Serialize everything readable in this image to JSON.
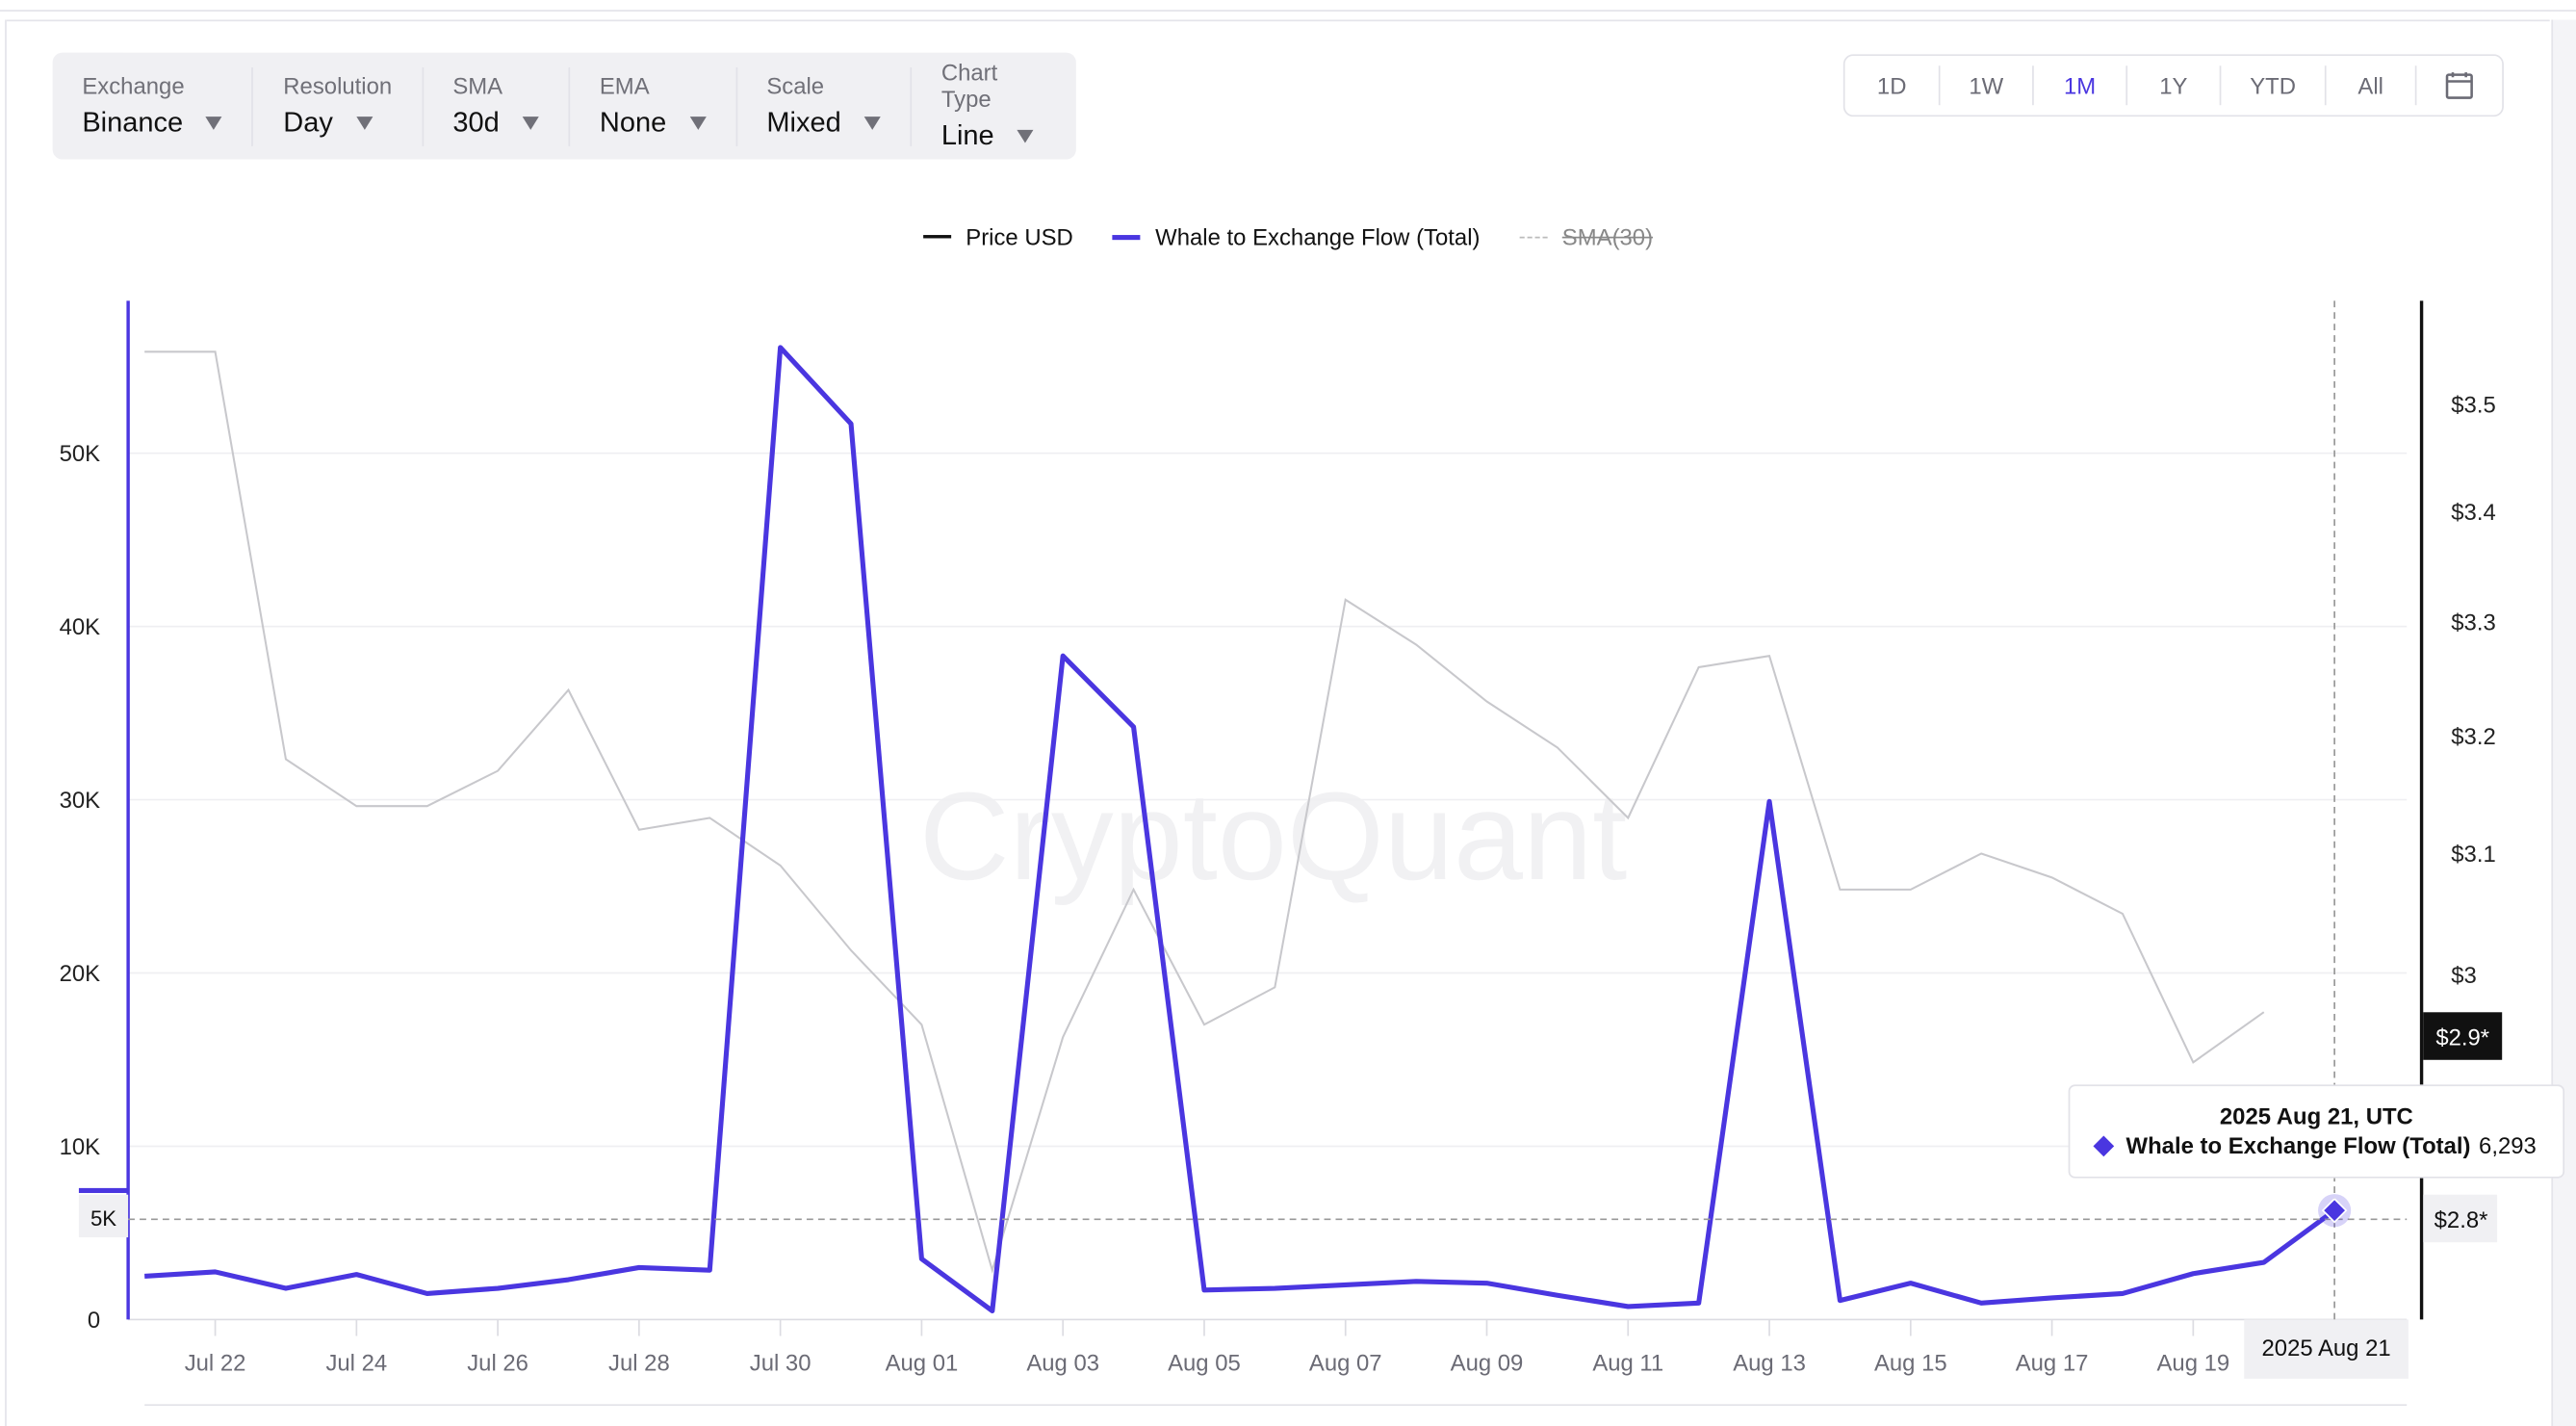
{
  "toolbar": [
    {
      "label": "Exchange",
      "value": "Binance"
    },
    {
      "label": "Resolution",
      "value": "Day"
    },
    {
      "label": "SMA",
      "value": "30d"
    },
    {
      "label": "EMA",
      "value": "None"
    },
    {
      "label": "Scale",
      "value": "Mixed"
    },
    {
      "label": "Chart Type",
      "value": "Line"
    }
  ],
  "ranges": [
    "1D",
    "1W",
    "1M",
    "1Y",
    "YTD",
    "All"
  ],
  "active_range": "1M",
  "tooltip": {
    "title": "2025 Aug 21, UTC",
    "series": "Whale to Exchange Flow (Total)",
    "value": "6,293"
  },
  "watermark": "CryptoQuant",
  "colors": {
    "flow": "#4a36e0",
    "price": "#c8c8cc",
    "grid": "#efeff2"
  },
  "chart_data": {
    "type": "line",
    "title": "",
    "legend": [
      "Price USD",
      "Whale to Exchange Flow (Total)",
      "SMA(30)"
    ],
    "legend_placement": "top-center",
    "x": [
      "Jul 21",
      "Jul 22",
      "Jul 23",
      "Jul 24",
      "Jul 25",
      "Jul 26",
      "Jul 27",
      "Jul 28",
      "Jul 29",
      "Jul 30",
      "Jul 31",
      "Aug 01",
      "Aug 02",
      "Aug 03",
      "Aug 04",
      "Aug 05",
      "Aug 06",
      "Aug 07",
      "Aug 08",
      "Aug 09",
      "Aug 10",
      "Aug 11",
      "Aug 12",
      "Aug 13",
      "Aug 14",
      "Aug 15",
      "Aug 16",
      "Aug 17",
      "Aug 18",
      "Aug 19",
      "Aug 20",
      "Aug 21"
    ],
    "x_tick_labels": [
      "Jul 22",
      "Jul 24",
      "Jul 26",
      "Jul 28",
      "Jul 30",
      "Aug 01",
      "Aug 03",
      "Aug 05",
      "Aug 07",
      "Aug 09",
      "Aug 11",
      "Aug 13",
      "Aug 15",
      "Aug 17",
      "Aug 19"
    ],
    "crosshair_x_label": "2025 Aug 21",
    "series": [
      {
        "name": "Whale to Exchange Flow (Total)",
        "axis": "left",
        "values": [
          2500,
          2750,
          1800,
          2600,
          1500,
          1800,
          2300,
          3000,
          2850,
          56100,
          51700,
          3500,
          500,
          38300,
          34200,
          1700,
          1800,
          2000,
          2200,
          2100,
          1400,
          750,
          950,
          29900,
          1100,
          2100,
          950,
          1250,
          1500,
          2650,
          3300,
          6293
        ]
      },
      {
        "name": "Price USD",
        "axis": "right",
        "values": [
          3.55,
          3.55,
          3.18,
          3.14,
          3.14,
          3.17,
          3.24,
          3.12,
          3.13,
          3.09,
          3.02,
          2.96,
          2.77,
          2.95,
          3.07,
          2.96,
          2.99,
          3.32,
          3.28,
          3.23,
          3.19,
          3.13,
          3.26,
          3.27,
          3.07,
          3.07,
          3.1,
          3.08,
          3.05,
          2.93,
          2.97,
          null
        ]
      }
    ],
    "y_left": {
      "ticks": [
        "0",
        "10K",
        "20K",
        "30K",
        "40K",
        "50K"
      ],
      "tick_values": [
        0,
        10000,
        20000,
        30000,
        40000,
        50000
      ],
      "ylim": [
        0,
        58800
      ],
      "marker_label": "5K"
    },
    "y_right": {
      "ticks": [
        "$3",
        "$3.1",
        "$3.2",
        "$3.3",
        "$3.4",
        "$3.5"
      ],
      "tick_values": [
        3,
        3.1,
        3.2,
        3.3,
        3.4,
        3.5
      ],
      "scale": "log",
      "marker_labels": [
        "$2.9*",
        "$2.8*"
      ]
    }
  }
}
